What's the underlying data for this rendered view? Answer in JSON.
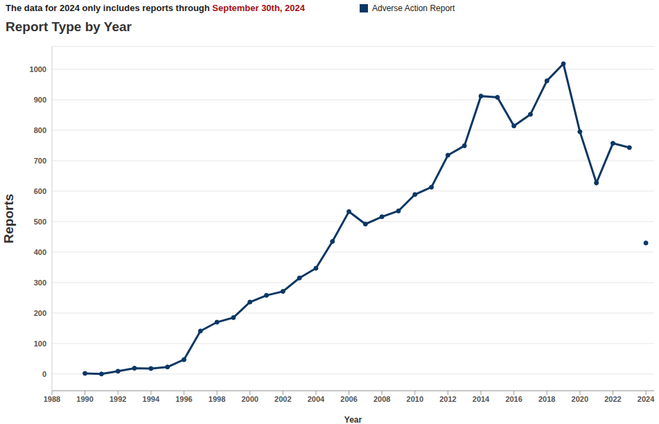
{
  "chart_data": {
    "type": "line",
    "title": "Report Type by Year",
    "subtitle": [
      "The data for 2024 only includes reports through ",
      "September 30th, 2024"
    ],
    "x_label": "Year",
    "y_label": "Reports",
    "x": [
      1990,
      1991,
      1992,
      1993,
      1994,
      1995,
      1996,
      1997,
      1998,
      1999,
      2000,
      2001,
      2002,
      2003,
      2004,
      2005,
      2006,
      2007,
      2008,
      2009,
      2010,
      2011,
      2012,
      2013,
      2014,
      2015,
      2016,
      2017,
      2018,
      2019,
      2020,
      2021,
      2022,
      2023,
      2024
    ],
    "series": [
      {
        "name": "Adverse Action Report",
        "color": "#0b3764",
        "marker": "circle",
        "values": [
          2,
          0,
          9,
          19,
          18,
          23,
          47,
          141,
          170,
          185,
          236,
          258,
          271,
          315,
          347,
          435,
          533,
          492,
          516,
          535,
          589,
          613,
          718,
          749,
          912,
          908,
          814,
          852,
          962,
          1018,
          795,
          627,
          757,
          743,
          null
        ]
      },
      {
        "name": "Adverse Action Report",
        "color": "#0b3764",
        "marker": "circle",
        "line_style": "none",
        "values": [
          null,
          null,
          null,
          null,
          null,
          null,
          null,
          null,
          null,
          null,
          null,
          null,
          null,
          null,
          null,
          null,
          null,
          null,
          null,
          null,
          null,
          null,
          null,
          null,
          null,
          null,
          null,
          null,
          null,
          null,
          null,
          null,
          null,
          null,
          430
        ]
      }
    ],
    "xlim": [
      1988,
      2024.5
    ],
    "xticks": [
      1988,
      1990,
      1992,
      1994,
      1996,
      1998,
      2000,
      2002,
      2004,
      2006,
      2008,
      2010,
      2012,
      2014,
      2016,
      2018,
      2020,
      2022,
      2024
    ],
    "ylim": [
      -55,
      1075
    ],
    "yticks": [
      0,
      100,
      200,
      300,
      400,
      500,
      600,
      700,
      800,
      900,
      1000
    ],
    "grid": true,
    "legend": "top"
  }
}
